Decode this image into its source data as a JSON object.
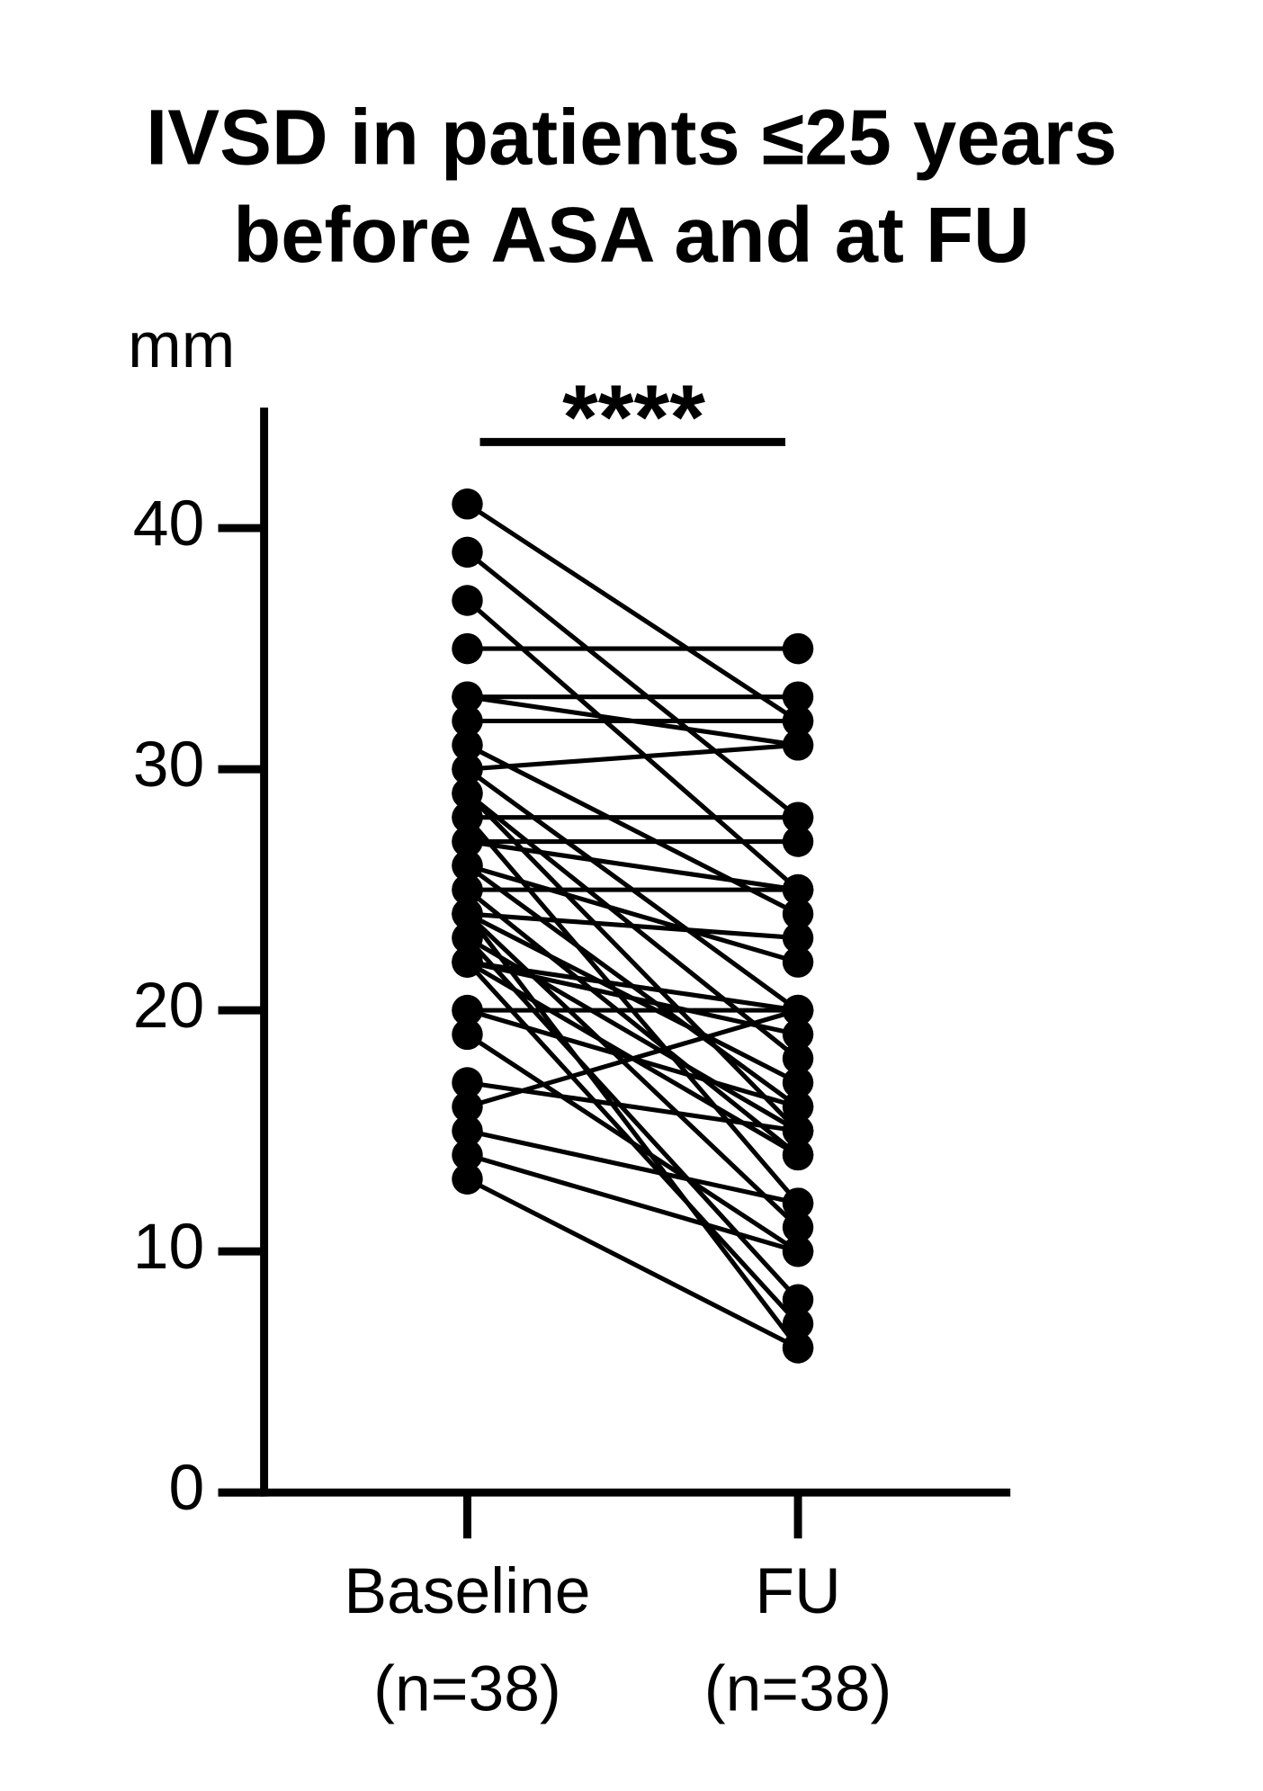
{
  "chart_data": {
    "type": "paired",
    "title": [
      "IVSD in patients ≤25 years",
      "before ASA and at FU"
    ],
    "y_label": "mm",
    "significance": "****",
    "categories": [
      [
        "Baseline",
        "(n=38)"
      ],
      [
        "FU",
        "(n=38)"
      ]
    ],
    "values": [
      [
        41,
        32
      ],
      [
        39,
        28
      ],
      [
        37,
        25
      ],
      [
        35,
        35
      ],
      [
        33,
        33
      ],
      [
        33,
        31
      ],
      [
        32,
        32
      ],
      [
        30,
        31
      ],
      [
        28,
        28
      ],
      [
        27,
        27
      ],
      [
        31,
        24
      ],
      [
        30,
        20
      ],
      [
        29,
        15
      ],
      [
        29,
        18
      ],
      [
        28,
        12
      ],
      [
        27,
        25
      ],
      [
        26,
        22
      ],
      [
        26,
        16
      ],
      [
        25,
        25
      ],
      [
        25,
        14
      ],
      [
        24,
        23
      ],
      [
        24,
        17
      ],
      [
        24,
        11
      ],
      [
        23,
        15
      ],
      [
        23,
        8
      ],
      [
        22,
        19
      ],
      [
        22,
        20
      ],
      [
        22,
        14
      ],
      [
        22,
        7
      ],
      [
        20,
        20
      ],
      [
        20,
        16
      ],
      [
        19,
        10
      ],
      [
        17,
        15
      ],
      [
        16,
        20
      ],
      [
        15,
        12
      ],
      [
        14,
        10
      ],
      [
        13,
        6
      ],
      [
        24,
        6
      ]
    ],
    "color": "#000000",
    "ylim": [
      0,
      45
    ],
    "yticks": [
      0,
      10,
      20,
      30,
      40
    ]
  }
}
